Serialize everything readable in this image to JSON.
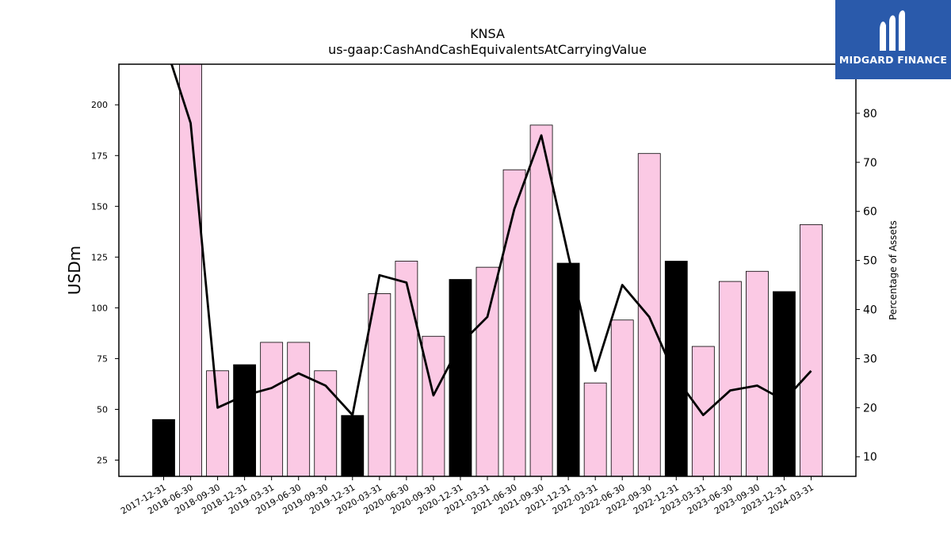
{
  "chart_data": {
    "type": "bar",
    "title": "KNSA",
    "subtitle": "us-gaap:CashAndCashEquivalentsAtCarryingValue",
    "ylabel": "USDm",
    "y2label": "Percentage of Assets",
    "ylim": [
      17,
      220
    ],
    "y2lim": [
      6,
      90
    ],
    "yticks": [
      25,
      50,
      75,
      100,
      125,
      150,
      175,
      200
    ],
    "y2ticks": [
      10,
      20,
      30,
      40,
      50,
      60,
      70,
      80
    ],
    "grid": false,
    "categories": [
      "2017-12-31",
      "2018-06-30",
      "2018-09-30",
      "2018-12-31",
      "2019-03-31",
      "2019-06-30",
      "2019-09-30",
      "2019-12-31",
      "2020-03-31",
      "2020-06-30",
      "2020-09-30",
      "2020-12-31",
      "2021-03-31",
      "2021-06-30",
      "2021-09-30",
      "2021-12-31",
      "2022-03-31",
      "2022-06-30",
      "2022-09-30",
      "2022-12-31",
      "2023-03-31",
      "2023-06-30",
      "2023-09-30",
      "2023-12-31",
      "2024-03-31"
    ],
    "series": [
      {
        "type": "bar",
        "values": [
          45,
          220,
          69,
          72,
          83,
          83,
          69,
          47,
          107,
          123,
          86,
          114,
          120,
          168,
          190,
          122,
          63,
          94,
          176,
          123,
          81,
          113,
          118,
          108,
          141
        ]
      },
      {
        "type": "line",
        "axis": "right",
        "values": [
          95,
          78,
          20,
          22.5,
          24,
          27,
          24.5,
          18.5,
          47,
          45.5,
          22.5,
          33,
          38.5,
          60.5,
          75.5,
          51,
          27.5,
          45,
          38.5,
          26,
          18.5,
          23.5,
          24.5,
          21.5,
          27.5
        ]
      }
    ],
    "bar_colors": {
      "annual": "#000000",
      "quarterly": "#fbc9e4"
    },
    "annual_categories": [
      "2017-12-31",
      "2018-12-31",
      "2019-12-31",
      "2020-12-31",
      "2021-12-31",
      "2022-12-31",
      "2023-12-31"
    ],
    "line_color": "#000000"
  },
  "logo": {
    "text": "MIDGARD FINANCE",
    "background": "#2a5aab"
  }
}
